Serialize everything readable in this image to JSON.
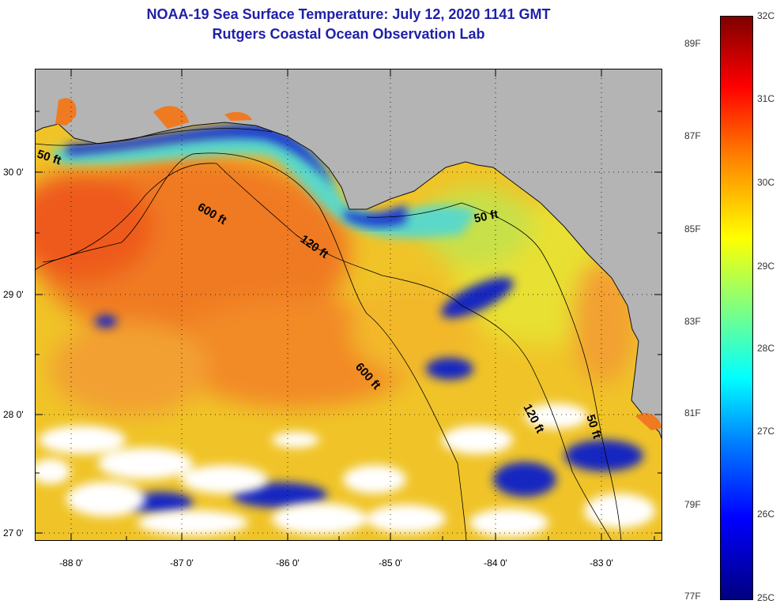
{
  "title": {
    "line1": "NOAA-19 Sea Surface Temperature:  July 12, 2020 1141 GMT",
    "line2": "Rutgers Coastal Ocean Observation Lab"
  },
  "map": {
    "lat_labels": [
      "30 0'",
      "29 0'",
      "28 0'",
      "27 0'"
    ],
    "lon_labels": [
      "-88 0'",
      "-87 0'",
      "-86 0'",
      "-85 0'",
      "-84 0'",
      "-83 0'"
    ],
    "contours": {
      "c50_west": "50 ft",
      "c600_north": "600 ft",
      "c120_north": "120 ft",
      "c50_east": "50 ft",
      "c600_south": "600 ft",
      "c120_east": "120 ft",
      "c50_south": "50 ft"
    }
  },
  "colorbar": {
    "celsius": [
      "32C",
      "31C",
      "30C",
      "29C",
      "28C",
      "27C",
      "26C",
      "25C"
    ],
    "fahrenheit": [
      "89F",
      "87F",
      "85F",
      "83F",
      "81F",
      "79F",
      "77F"
    ]
  },
  "colors": {
    "land": "#b4b4b4",
    "title": "#1f1fa8",
    "warm": "#f07020",
    "mild": "#f0c020",
    "cool": "#40d0e0",
    "cold": "#1030d0",
    "clouds": "#ffffff"
  }
}
